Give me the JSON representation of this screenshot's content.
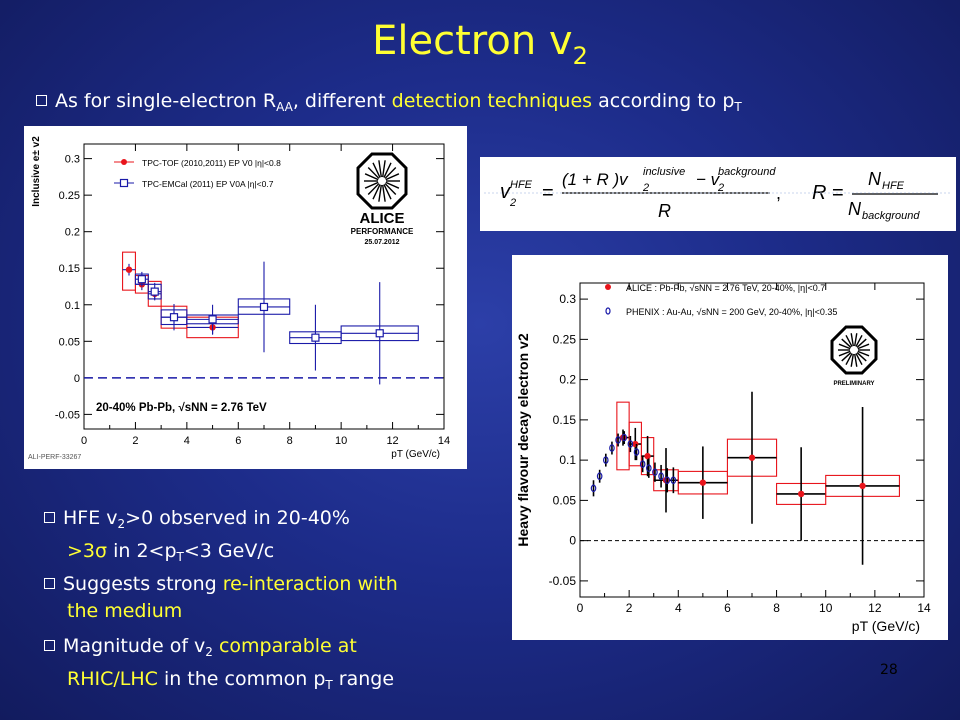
{
  "slide": {
    "title_main": "Electron v",
    "title_sub": "2",
    "page_number": "28"
  },
  "top_bullet": {
    "p1": "As for single-electron R",
    "sub1": "AA",
    "p2": ", different ",
    "highlight": "detection techniques",
    "p3": " according to p",
    "sub2": "T"
  },
  "bullets": {
    "b1_l1_a": "HFE v",
    "b1_l1_sub": "2",
    "b1_l1_b": ">0 observed in 20-40%",
    "b1_l2_a": ">3σ",
    "b1_l2_b": " in 2<p",
    "b1_l2_sub": "T",
    "b1_l2_c": "<3 GeV/c",
    "b2_a": "Suggests strong ",
    "b2_hl1": "re-interaction with",
    "b2_hl2": "the medium",
    "b3_a": "Magnitude of v",
    "b3_sub": "2",
    "b3_hl": " comparable at",
    "b3_l2_hl": "RHIC/LHC",
    "b3_l2_b": " in the common p",
    "b3_l2_sub": "T",
    "b3_l2_c": " range"
  },
  "formula": {
    "v2hfe_lhs": "v",
    "hfe_sup": "HFE",
    "two": "2",
    "eq": "=",
    "num": "(1 + R )v",
    "incl_sup": "inclusive",
    "minus": "− v",
    "bkg_sup": "background",
    "den_R": "R",
    "comma": ",",
    "R_lhs": "R",
    "N": "N",
    "N_hfe_sub": "HFE",
    "N_bkg_sub": "background"
  },
  "chart_data": [
    {
      "type": "scatter",
      "ylabel": "Inclusive e± v2",
      "xlabel": "pT (GeV/c)",
      "xlim": [
        0,
        14
      ],
      "ylim": [
        -0.07,
        0.32
      ],
      "xticks": [
        "0",
        "2",
        "4",
        "6",
        "8",
        "10",
        "12",
        "14"
      ],
      "yticks": [
        "-0.05",
        "0",
        "0.05",
        "0.1",
        "0.15",
        "0.2",
        "0.25",
        "0.3"
      ],
      "annotation": "20-40% Pb-Pb, √sNN = 2.76 TeV",
      "logo_text": "ALICE",
      "logo_sub": "PERFORMANCE",
      "logo_date": "25.07.2012",
      "footer_label": "ALI-PERF-33267",
      "series": [
        {
          "name": "TPC-TOF (2010,2011) EP V0 |η|<0.8",
          "color": "#e8141b",
          "marker": "circle",
          "x": [
            1.75,
            2.25,
            2.75,
            3.5,
            5.0
          ],
          "y": [
            0.148,
            0.128,
            0.115,
            0.083,
            0.069
          ],
          "yerr": [
            0.008,
            0.008,
            0.008,
            0.008,
            0.01
          ],
          "syst_lo": [
            0.12,
            0.116,
            0.098,
            0.068,
            0.055
          ],
          "syst_hi": [
            0.172,
            0.14,
            0.132,
            0.098,
            0.083
          ],
          "box_w": [
            0.5,
            0.5,
            0.5,
            1.0,
            2.0
          ]
        },
        {
          "name": "TPC-EMCal (2011) EP V0A |η|<0.7",
          "color": "#1a1aa8",
          "marker": "square",
          "x": [
            2.25,
            2.75,
            3.5,
            5.0,
            7.0,
            9.0,
            11.5
          ],
          "y": [
            0.135,
            0.118,
            0.083,
            0.08,
            0.097,
            0.055,
            0.061
          ],
          "yerr": [
            0.01,
            0.012,
            0.018,
            0.02,
            0.062,
            0.045,
            0.07
          ],
          "syst_lo": [
            0.128,
            0.108,
            0.073,
            0.074,
            0.087,
            0.047,
            0.051
          ],
          "syst_hi": [
            0.142,
            0.128,
            0.093,
            0.086,
            0.108,
            0.063,
            0.071
          ],
          "box_w": [
            0.5,
            0.5,
            1.0,
            2.0,
            2.0,
            2.0,
            3.0
          ]
        }
      ]
    },
    {
      "type": "scatter",
      "ylabel": "Heavy flavour decay electron v2",
      "xlabel": "pT (GeV/c)",
      "xlim": [
        0,
        14
      ],
      "ylim": [
        -0.07,
        0.32
      ],
      "xticks": [
        "0",
        "2",
        "4",
        "6",
        "8",
        "10",
        "12",
        "14"
      ],
      "yticks": [
        "-0.05",
        "0",
        "0.05",
        "0.1",
        "0.15",
        "0.2",
        "0.25",
        "0.3"
      ],
      "logo_text": "ALICE",
      "logo_sub": "PRELIMINARY",
      "series": [
        {
          "name": "ALICE : Pb-Pb, √sNN = 2.76 TeV, 20-40%, |η|<0.7",
          "color": "#e8141b",
          "marker": "circle",
          "x": [
            1.75,
            2.25,
            2.75,
            3.5,
            5.0,
            7.0,
            9.0,
            11.5
          ],
          "y": [
            0.128,
            0.12,
            0.105,
            0.075,
            0.072,
            0.103,
            0.058,
            0.068
          ],
          "yerr": [
            0.01,
            0.02,
            0.025,
            0.04,
            0.045,
            0.082,
            0.058,
            0.098
          ],
          "syst_lo": [
            0.088,
            0.093,
            0.082,
            0.062,
            0.058,
            0.08,
            0.045,
            0.055
          ],
          "syst_hi": [
            0.172,
            0.147,
            0.128,
            0.088,
            0.086,
            0.126,
            0.071,
            0.081
          ],
          "box_w": [
            0.5,
            0.5,
            0.5,
            1.0,
            2.0,
            2.0,
            2.0,
            3.0
          ]
        },
        {
          "name": "PHENIX : Au-Au, √sNN = 200 GeV, 20-40%, |η|<0.35",
          "color": "#1a1aa8",
          "marker": "open-circle",
          "x": [
            0.55,
            0.8,
            1.05,
            1.3,
            1.55,
            1.8,
            2.05,
            2.3,
            2.55,
            2.8,
            3.05,
            3.3,
            3.55,
            3.8
          ],
          "y": [
            0.065,
            0.08,
            0.1,
            0.115,
            0.125,
            0.128,
            0.12,
            0.11,
            0.095,
            0.09,
            0.085,
            0.08,
            0.075,
            0.075
          ],
          "yerr": [
            0.01,
            0.008,
            0.008,
            0.008,
            0.008,
            0.008,
            0.01,
            0.01,
            0.01,
            0.012,
            0.012,
            0.014,
            0.015,
            0.016
          ]
        }
      ]
    }
  ]
}
